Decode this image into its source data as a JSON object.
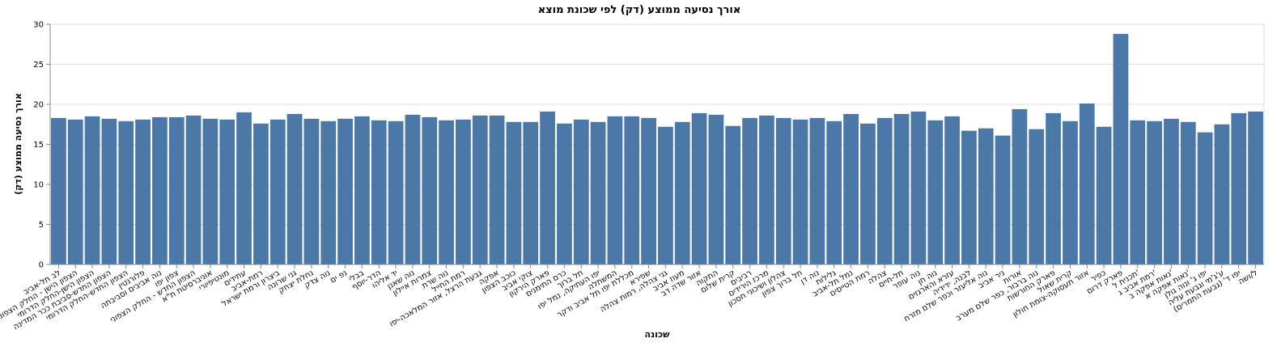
{
  "chart_data": {
    "type": "bar",
    "title": "אורך נסיעה ממוצע (דק) לפי שכונת מוצא",
    "x_label": "שכונה",
    "y_label": "אורך נסיעה ממוצע (דק)",
    "color": "#4c78a8",
    "grid": true,
    "categories": [
      "לב תל-אביב",
      "הצפון הישן - החלק הצפוני",
      "הצפון הישן-החלק הדרומי",
      "הצפון החדש-סביבת ככר המדינה",
      "הצפון החדש-החלק הדרומי",
      "פלורנטין",
      "נוה אביבים וסביבתה",
      "צפון יפו",
      "הצפון החדש - החלק הצפוני",
      "אוניברסיטת ת\"א",
      "מונטיפיורי",
      "עתידים",
      "רמת-אביב",
      "ביצרון ורמת ישראל",
      "גני שרונה",
      "נחלת יצחק",
      "נוה צדק",
      "נפ ים",
      "בבלי",
      "הדר-יוסף",
      "יד אליהו",
      "נוה שאנן",
      "צמרות איילון",
      "נוה שרת",
      "רמת החייל",
      "גבעת הרצל, אזור המלאכה-יפו",
      "אפקה",
      "כוכב הצפון",
      "צוקי אביב",
      "פארק הירקון",
      "כרם התימנים",
      "תל ברוך",
      "יפו העתיקה, נמל יפו",
      "המשתלה",
      "מכללת יפו תל אביב ודקר",
      "שפירא",
      "גני צהלה, רמות צהלה",
      "מעוז אביב",
      "אזור שדה דב",
      "התקוה",
      "קרית שלום",
      "רביבים",
      "מרכז הירידים",
      "צהלון ושיכוני חסכון",
      "תל ברוך צפון",
      "נוה דן",
      "גלילות",
      "נמל תל-אביב",
      "רמת הטייסים",
      "צהלה",
      "תל-חיים",
      "נוה עופר",
      "נוה חן",
      "עזרא והארגזים",
      "לבנה, ידידיה",
      "נוה אליעזר וכפר שלם מזרח",
      "ניר אביב",
      "אורות",
      "נוה ברבור, כפר שלם מערב",
      "פארק החורשות",
      "קרית שאול",
      "אזור תעסוקה-צומת חולון",
      "כפיר",
      "פארק דרום",
      "תכנית ל'",
      "רמת אביב ג'",
      "נאות אפקה ב'",
      "נאות אפקה א'",
      "יפו ג' ונוה גולן",
      "ע'ג'מי וגבעת עליה",
      "יפו ד' (גבעת התמרים)",
      "ל/ושה"
    ],
    "values": [
      18.3,
      18.1,
      18.5,
      18.2,
      17.9,
      18.1,
      18.4,
      18.4,
      18.6,
      18.2,
      18.1,
      19.0,
      17.6,
      18.1,
      18.8,
      18.2,
      17.9,
      18.2,
      18.5,
      18.0,
      17.9,
      18.7,
      18.4,
      18.0,
      18.1,
      18.6,
      18.6,
      17.8,
      17.8,
      19.1,
      17.6,
      18.1,
      17.8,
      18.5,
      18.5,
      18.3,
      17.2,
      17.8,
      18.9,
      18.7,
      17.3,
      18.3,
      18.6,
      18.3,
      18.1,
      18.3,
      17.9,
      18.8,
      17.6,
      18.3,
      18.8,
      19.1,
      18.0,
      18.5,
      16.7,
      17.0,
      16.1,
      19.4,
      16.9,
      18.9,
      17.9,
      20.1,
      17.2,
      28.8,
      18.0,
      17.9,
      18.2,
      17.8,
      16.5,
      17.5,
      18.9,
      19.1
    ],
    "ylim": [
      0,
      30
    ],
    "yticks": [
      0,
      5,
      10,
      15,
      20,
      25,
      30
    ]
  }
}
